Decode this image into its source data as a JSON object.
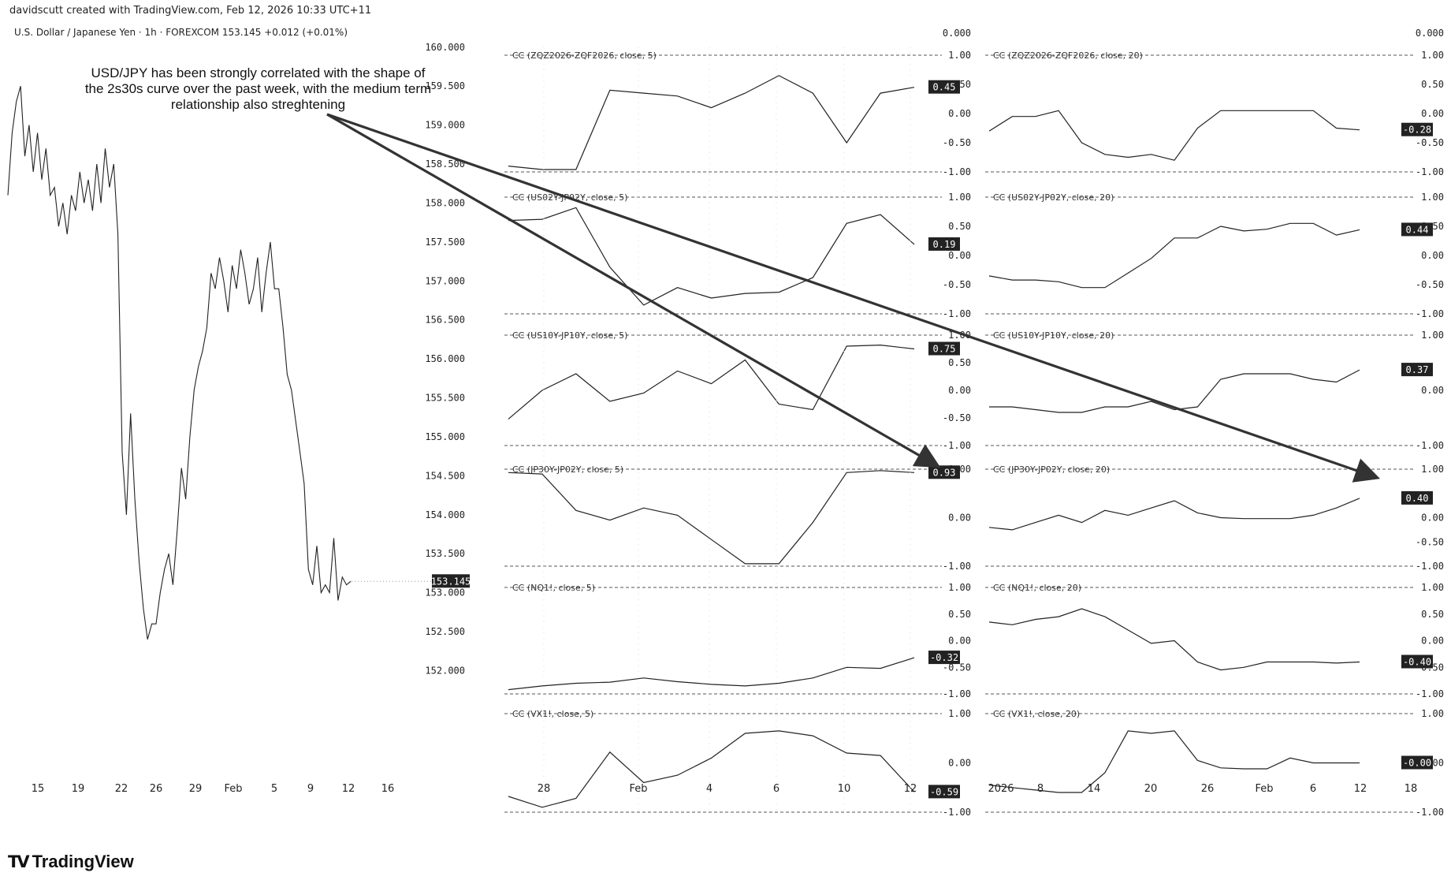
{
  "header": {
    "attribution": "davidscutt created with TradingView.com, Feb 12, 2026 10:33 UTC+11",
    "symbol_line": "U.S. Dollar / Japanese Yen · 1h · FOREXCOM  153.145  +0.012 (+0.01%)"
  },
  "annotation": "USD/JPY has been strongly correlated with the shape of the 2s30s curve over the past week, with the medium term relationship also streghtening",
  "brand": {
    "name": "TradingView",
    "icon": "tradingview-logo-icon"
  },
  "chart_data": [
    {
      "type": "line",
      "series": [
        {
          "x": [
            "15",
            "15",
            "15",
            "15",
            "16",
            "16",
            "16",
            "17",
            "17",
            "17",
            "18",
            "18",
            "18",
            "19",
            "19",
            "19",
            "20",
            "20",
            "20",
            "21",
            "21",
            "21",
            "22",
            "22",
            "22",
            "23",
            "23",
            "23",
            "24",
            "24",
            "25",
            "25",
            "26",
            "26",
            "26",
            "27",
            "27",
            "27",
            "28",
            "28",
            "28",
            "29",
            "29",
            "29",
            "30",
            "30",
            "30",
            "31",
            "31",
            "31",
            "Feb 1",
            "Feb 1",
            "Feb 2",
            "Feb 2",
            "Feb 2",
            "Feb 3",
            "Feb 3",
            "Feb 3",
            "Feb 4",
            "Feb 4",
            "Feb 4",
            "Feb 5",
            "Feb 5",
            "Feb 5",
            "Feb 6",
            "Feb 6",
            "Feb 6",
            "Feb 7",
            "Feb 8",
            "Feb 8",
            "Feb 9",
            "Feb 9",
            "Feb 9",
            "Feb 10",
            "Feb 10",
            "Feb 10",
            "Feb 11",
            "Feb 11",
            "Feb 11",
            "Feb 12",
            "Feb 12",
            "Feb 12"
          ],
          "values": [
            158.1,
            158.9,
            159.3,
            159.5,
            158.6,
            159.0,
            158.4,
            158.9,
            158.3,
            158.7,
            158.1,
            158.2,
            157.7,
            158.0,
            157.6,
            158.1,
            157.9,
            158.4,
            158.0,
            158.3,
            157.9,
            158.5,
            158.0,
            158.7,
            158.2,
            158.5,
            157.6,
            154.8,
            154.0,
            155.3,
            154.2,
            153.4,
            152.8,
            152.4,
            152.6,
            152.6,
            153.0,
            153.3,
            153.5,
            153.1,
            153.8,
            154.6,
            154.2,
            155.0,
            155.6,
            155.9,
            156.1,
            156.4,
            157.1,
            156.9,
            157.3,
            157.0,
            156.6,
            157.2,
            156.9,
            157.4,
            157.1,
            156.7,
            156.9,
            157.3,
            156.6,
            157.1,
            157.5,
            156.9,
            156.9,
            156.4,
            155.8,
            155.6,
            155.2,
            154.8,
            154.4,
            153.3,
            153.1,
            153.6,
            153.0,
            153.1,
            153.0,
            153.7,
            152.9,
            153.2,
            153.1,
            153.145
          ],
          "x_ticks": [
            "15",
            "19",
            "22",
            "26",
            "29",
            "Feb",
            "5",
            "9",
            "12",
            "16"
          ]
        }
      ],
      "ylim": [
        151.6,
        160.2
      ],
      "yticks": [
        "160.000",
        "159.500",
        "159.000",
        "158.500",
        "158.000",
        "157.500",
        "157.000",
        "156.500",
        "156.000",
        "155.500",
        "155.000",
        "154.500",
        "154.000",
        "153.500",
        "153.000",
        "152.500",
        "152.000"
      ],
      "last_price": "153.145"
    },
    {
      "type": "line",
      "x_ticks": [
        "28",
        "Feb",
        "4",
        "6",
        "10",
        "12"
      ],
      "panels": [
        {
          "label": "CC (ZQZ2026-ZQF2026, close, 5)",
          "values": [
            -0.9,
            -0.96,
            -0.96,
            0.4,
            0.35,
            0.3,
            0.1,
            0.35,
            0.65,
            0.35,
            -0.5,
            0.35,
            0.45
          ],
          "badge": "0.45",
          "ticks": [
            "0.000",
            "1.00",
            "0.50",
            "0.00",
            "-0.50",
            "-1.00"
          ]
        },
        {
          "label": "CC (US02Y-JP02Y, close, 5)",
          "values": [
            0.6,
            0.62,
            0.82,
            -0.2,
            -0.85,
            -0.55,
            -0.73,
            -0.65,
            -0.63,
            -0.38,
            0.55,
            0.7,
            0.19
          ],
          "badge": "0.19",
          "ticks": [
            "1.00",
            "0.50",
            "0.00",
            "-0.50",
            "-1.00"
          ]
        },
        {
          "label": "CC (US10Y-JP10Y, close, 5)",
          "values": [
            -0.52,
            0.0,
            0.3,
            -0.2,
            -0.05,
            0.35,
            0.12,
            0.55,
            -0.25,
            -0.35,
            0.8,
            0.82,
            0.75
          ],
          "badge": "0.75",
          "ticks": [
            "1.00",
            "0.50",
            "0.00",
            "-0.50",
            "-1.00"
          ]
        },
        {
          "label": "CC (JP30Y-JP02Y, close, 5)",
          "values": [
            0.93,
            0.9,
            0.15,
            -0.05,
            0.2,
            0.05,
            -0.45,
            -0.95,
            -0.95,
            -0.1,
            0.93,
            0.97,
            0.93
          ],
          "badge": "0.93",
          "ticks": [
            "1.00",
            "0.00",
            "-1.00"
          ]
        },
        {
          "label": "CC (NQ1!, close, 5)",
          "values": [
            -0.92,
            -0.85,
            -0.8,
            -0.78,
            -0.7,
            -0.77,
            -0.82,
            -0.85,
            -0.8,
            -0.7,
            -0.5,
            -0.52,
            -0.32
          ],
          "badge": "-0.32",
          "ticks": [
            "1.00",
            "0.50",
            "0.00",
            "-0.50",
            "-1.00"
          ]
        },
        {
          "label": "CC (VX1!, close, 5)",
          "values": [
            -0.68,
            -0.9,
            -0.72,
            0.22,
            -0.4,
            -0.25,
            0.1,
            0.6,
            0.65,
            0.55,
            0.2,
            0.15,
            -0.59
          ],
          "badge": "-0.59",
          "ticks": [
            "1.00",
            "0.00",
            "-1.00"
          ]
        }
      ]
    },
    {
      "type": "line",
      "x_ticks": [
        "2026",
        "8",
        "14",
        "20",
        "26",
        "Feb",
        "6",
        "12",
        "18"
      ],
      "panels": [
        {
          "label": "CC (ZQZ2026-ZQF2026, close, 20)",
          "values": [
            -0.3,
            -0.05,
            -0.05,
            0.05,
            -0.5,
            -0.7,
            -0.75,
            -0.7,
            -0.8,
            -0.25,
            0.05,
            0.05,
            0.05,
            0.05,
            0.05,
            -0.25,
            -0.28
          ],
          "badge": "-0.28",
          "ticks": [
            "0.000",
            "1.00",
            "0.50",
            "0.00",
            "-0.50",
            "-1.00"
          ]
        },
        {
          "label": "CC (US02Y-JP02Y, close, 20)",
          "values": [
            -0.35,
            -0.42,
            -0.42,
            -0.45,
            -0.55,
            -0.55,
            -0.3,
            -0.05,
            0.3,
            0.3,
            0.5,
            0.42,
            0.45,
            0.55,
            0.55,
            0.35,
            0.44
          ],
          "badge": "0.44",
          "ticks": [
            "1.00",
            "0.50",
            "0.00",
            "-0.50",
            "-1.00"
          ]
        },
        {
          "label": "CC (US10Y-JP10Y, close, 20)",
          "values": [
            -0.3,
            -0.3,
            -0.35,
            -0.4,
            -0.4,
            -0.3,
            -0.3,
            -0.2,
            -0.35,
            -0.3,
            0.2,
            0.3,
            0.3,
            0.3,
            0.2,
            0.15,
            0.37
          ],
          "badge": "0.37",
          "ticks": [
            "1.00",
            "0.00",
            "-1.00"
          ]
        },
        {
          "label": "CC (JP30Y-JP02Y, close, 20)",
          "values": [
            -0.2,
            -0.25,
            -0.1,
            0.05,
            -0.1,
            0.15,
            0.05,
            0.2,
            0.35,
            0.1,
            0.0,
            -0.02,
            -0.02,
            -0.02,
            0.05,
            0.2,
            0.4
          ],
          "badge": "0.40",
          "ticks": [
            "1.00",
            "0.00",
            "-0.50",
            "-1.00"
          ]
        },
        {
          "label": "CC (NQ1!, close, 20)",
          "values": [
            0.35,
            0.3,
            0.4,
            0.45,
            0.6,
            0.45,
            0.2,
            -0.05,
            0.0,
            -0.4,
            -0.55,
            -0.5,
            -0.4,
            -0.4,
            -0.4,
            -0.42,
            -0.4
          ],
          "badge": "-0.40",
          "ticks": [
            "1.00",
            "0.50",
            "0.00",
            "-0.50",
            "-1.00"
          ]
        },
        {
          "label": "CC (VX1!, close, 20)",
          "values": [
            -0.45,
            -0.5,
            -0.55,
            -0.6,
            -0.6,
            -0.2,
            0.65,
            0.6,
            0.65,
            0.05,
            -0.1,
            -0.12,
            -0.12,
            0.1,
            0.0,
            -0.0,
            -0.0
          ],
          "badge": "-0.00",
          "ticks": [
            "1.00",
            "0.00",
            "-1.00"
          ]
        }
      ]
    }
  ]
}
